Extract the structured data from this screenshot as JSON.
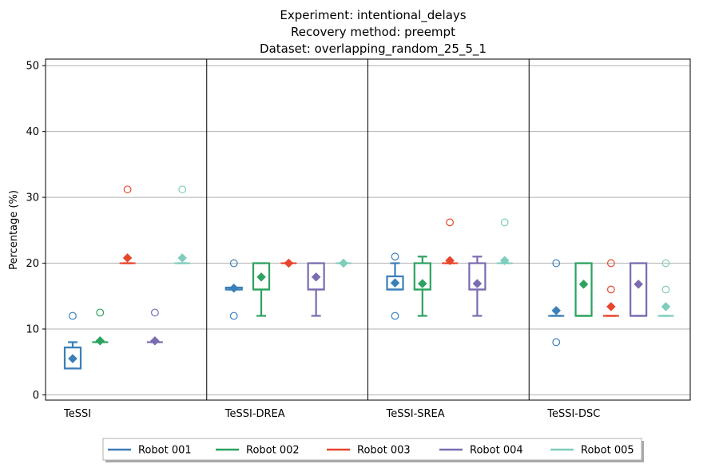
{
  "chart_data": {
    "type": "box",
    "title_lines": [
      "Experiment: intentional_delays",
      "Recovery method: preempt",
      "Dataset: overlapping_random_25_5_1"
    ],
    "ylabel": "Percentage (%)",
    "ylim": [
      -0.8,
      51
    ],
    "yticks": [
      "0",
      "10",
      "20",
      "30",
      "40",
      "50"
    ],
    "grid": "horizontal",
    "legend_placement": "bottom-center",
    "groups": [
      "TeSSI",
      "TeSSI-DREA",
      "TeSSI-SREA",
      "TeSSI-DSC"
    ],
    "series": [
      {
        "name": "Robot 001",
        "color": "#3a7fb9",
        "boxes": [
          {
            "whislo": 4,
            "q1": 4,
            "med": 7.2,
            "q3": 7.2,
            "whishi": 8,
            "mean": 5.5,
            "fliers": [
              12
            ]
          },
          {
            "whislo": 16,
            "q1": 16,
            "med": 16,
            "q3": 16.3,
            "whishi": 16.3,
            "mean": 16.2,
            "fliers": [
              12,
              20
            ]
          },
          {
            "whislo": 16,
            "q1": 16,
            "med": 16,
            "q3": 18,
            "whishi": 20,
            "mean": 17,
            "fliers": [
              12,
              21
            ]
          },
          {
            "whislo": 12,
            "q1": 12,
            "med": 12,
            "q3": 12,
            "whishi": 12,
            "mean": 12.8,
            "fliers": [
              8,
              20
            ]
          }
        ]
      },
      {
        "name": "Robot 002",
        "color": "#2ca25f",
        "boxes": [
          {
            "whislo": 8,
            "q1": 8,
            "med": 8,
            "q3": 8,
            "whishi": 8,
            "mean": 8.2,
            "fliers": [
              12.5
            ]
          },
          {
            "whislo": 12,
            "q1": 16,
            "med": 16,
            "q3": 20,
            "whishi": 20,
            "mean": 17.9,
            "fliers": []
          },
          {
            "whislo": 12,
            "q1": 16,
            "med": 16,
            "q3": 20,
            "whishi": 21,
            "mean": 16.9,
            "fliers": []
          },
          {
            "whislo": 12,
            "q1": 12,
            "med": 12,
            "q3": 20,
            "whishi": 20,
            "mean": 16.8,
            "fliers": []
          }
        ]
      },
      {
        "name": "Robot 003",
        "color": "#e8452c",
        "boxes": [
          {
            "whislo": 20,
            "q1": 20,
            "med": 20,
            "q3": 20,
            "whishi": 20,
            "mean": 20.8,
            "fliers": [
              31.2
            ]
          },
          {
            "whislo": 20,
            "q1": 20,
            "med": 20,
            "q3": 20,
            "whishi": 20,
            "mean": 20,
            "fliers": []
          },
          {
            "whislo": 20,
            "q1": 20,
            "med": 20,
            "q3": 20,
            "whishi": 20,
            "mean": 20.4,
            "fliers": [
              26.2
            ]
          },
          {
            "whislo": 12,
            "q1": 12,
            "med": 12,
            "q3": 12,
            "whishi": 12,
            "mean": 13.4,
            "fliers": [
              16,
              20
            ]
          }
        ]
      },
      {
        "name": "Robot 004",
        "color": "#7b6bb0",
        "boxes": [
          {
            "whislo": 8,
            "q1": 8,
            "med": 8,
            "q3": 8,
            "whishi": 8,
            "mean": 8.2,
            "fliers": [
              12.5
            ]
          },
          {
            "whislo": 12,
            "q1": 16,
            "med": 16,
            "q3": 20,
            "whishi": 20,
            "mean": 17.9,
            "fliers": []
          },
          {
            "whislo": 12,
            "q1": 16,
            "med": 16,
            "q3": 20,
            "whishi": 21,
            "mean": 16.9,
            "fliers": []
          },
          {
            "whislo": 12,
            "q1": 12,
            "med": 12,
            "q3": 20,
            "whishi": 20,
            "mean": 16.8,
            "fliers": []
          }
        ]
      },
      {
        "name": "Robot 005",
        "color": "#7fcdbb",
        "boxes": [
          {
            "whislo": 20,
            "q1": 20,
            "med": 20,
            "q3": 20,
            "whishi": 20,
            "mean": 20.8,
            "fliers": [
              31.2
            ]
          },
          {
            "whislo": 20,
            "q1": 20,
            "med": 20,
            "q3": 20,
            "whishi": 20,
            "mean": 20,
            "fliers": []
          },
          {
            "whislo": 20,
            "q1": 20,
            "med": 20,
            "q3": 20,
            "whishi": 20,
            "mean": 20.4,
            "fliers": [
              26.2
            ]
          },
          {
            "whislo": 12,
            "q1": 12,
            "med": 12,
            "q3": 12,
            "whishi": 12,
            "mean": 13.4,
            "fliers": [
              16,
              20
            ]
          }
        ]
      }
    ]
  }
}
